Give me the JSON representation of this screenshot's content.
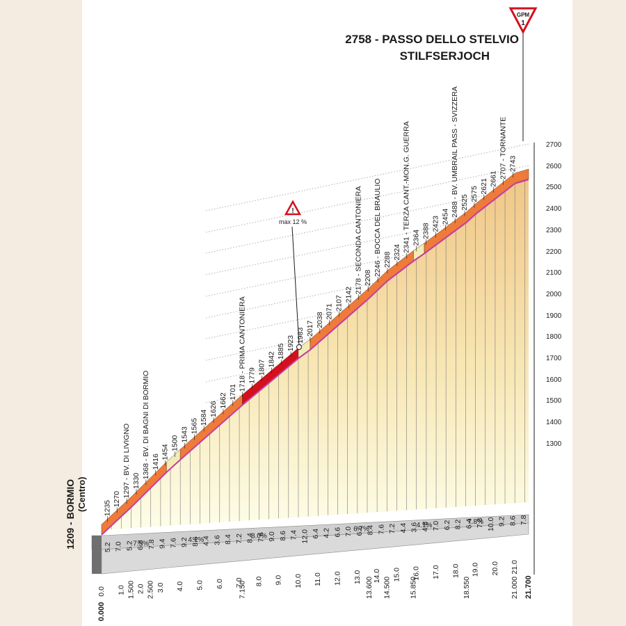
{
  "chart_data": {
    "type": "area",
    "title": "2758 - PASSO DELLO STELVIO",
    "subtitle": "STILFSERJOCH",
    "gpm_badge": {
      "text": "GPM",
      "category": "1"
    },
    "start": {
      "altitude": "1209",
      "name": "BORMIO",
      "name2": "(Centro)"
    },
    "ylim": [
      1209,
      2758
    ],
    "y_ticks": [
      1300,
      1400,
      1500,
      1600,
      1700,
      1800,
      1900,
      2000,
      2100,
      2200,
      2300,
      2400,
      2500,
      2600,
      2700
    ],
    "x_ticks": [
      "0.0",
      "1.0",
      "2.0",
      "3.0",
      "4.0",
      "5.0",
      "6.0",
      "7.0",
      "8.0",
      "9.0",
      "10.0",
      "11.0",
      "12.0",
      "13.0",
      "14.0",
      "15.0",
      "16.0",
      "17.0",
      "18.0",
      "19.0",
      "20.0",
      "21.0"
    ],
    "distance_labels": [
      "0.000",
      "1.500",
      "2.500",
      "7.150",
      "13.600",
      "14.500",
      "15.850",
      "18.550",
      "21.000",
      "21.700"
    ],
    "profile_x": [
      0,
      1.5,
      2.5,
      3.3,
      4.0,
      7.15,
      10.0,
      10.6,
      13.6,
      14.5,
      15.85,
      16.4,
      18.55,
      19.0,
      21.0,
      21.7
    ],
    "profile_y": [
      1209,
      1330,
      1416,
      1485,
      1540,
      1779,
      1983,
      2020,
      2246,
      2320,
      2408,
      2440,
      2575,
      2610,
      2743,
      2758
    ],
    "altitude_labels": [
      "1235",
      "1270",
      "1297 - BV. DI LIVIGNO",
      "1330",
      "1368 - BV. DI BAGNI DI BORMIO",
      "1416",
      "1454",
      "1500",
      "1543",
      "1565",
      "1584",
      "1626",
      "1662",
      "1701",
      "1718 - PRIMA CANTONIERA",
      "1779",
      "1807",
      "1842",
      "1885",
      "1923",
      "1983",
      "2017",
      "2038",
      "2071",
      "2107",
      "2142",
      "2178 - SECONDA CANTONIERA",
      "2208",
      "2246 - BOCCA DEL BRAULIO",
      "2288",
      "2324",
      "2341 - TERZA CANT.-MON.G. GUERRA",
      "2364",
      "2388",
      "2423",
      "2454",
      "2488 - BV. UMBRAIL PASS - SVIZZERA",
      "2525",
      "2575",
      "2621",
      "2661",
      "2707 - TORNANTE",
      "2743"
    ],
    "km_gradients": [
      "5.2",
      "7.0",
      "5.2",
      "6.8",
      "7.8",
      "9.4",
      "7.6",
      "9.2",
      "8.6",
      "4.4",
      "3.6",
      "8.4",
      "7.2",
      "8.4",
      "7.6",
      "9.0",
      "8.6",
      "7.4",
      "12.0",
      "6.4",
      "4.2",
      "6.6",
      "7.0",
      "6.6",
      "8.4",
      "7.6",
      "7.2",
      "4.4",
      "3.6",
      "4.8",
      "7.0",
      "6.2",
      "8.2",
      "6.4",
      "7.8",
      "10.0",
      "9.2",
      "8.6",
      "7.8"
    ],
    "section_gradients": [
      "7.5%",
      "4.1%",
      "8.0%",
      "6.7%",
      "4.1%",
      "7.8%"
    ],
    "max_marker": "max 12 %"
  },
  "colors": {
    "profile_orange": "#ee7b3a",
    "profile_light": "#f3ebb4",
    "profile_red": "#d4101e",
    "purple_line": "#c33fa8",
    "fill_top": "#f1c98a",
    "fill_bottom": "#fdfce6",
    "base": "#cfcfcf"
  }
}
